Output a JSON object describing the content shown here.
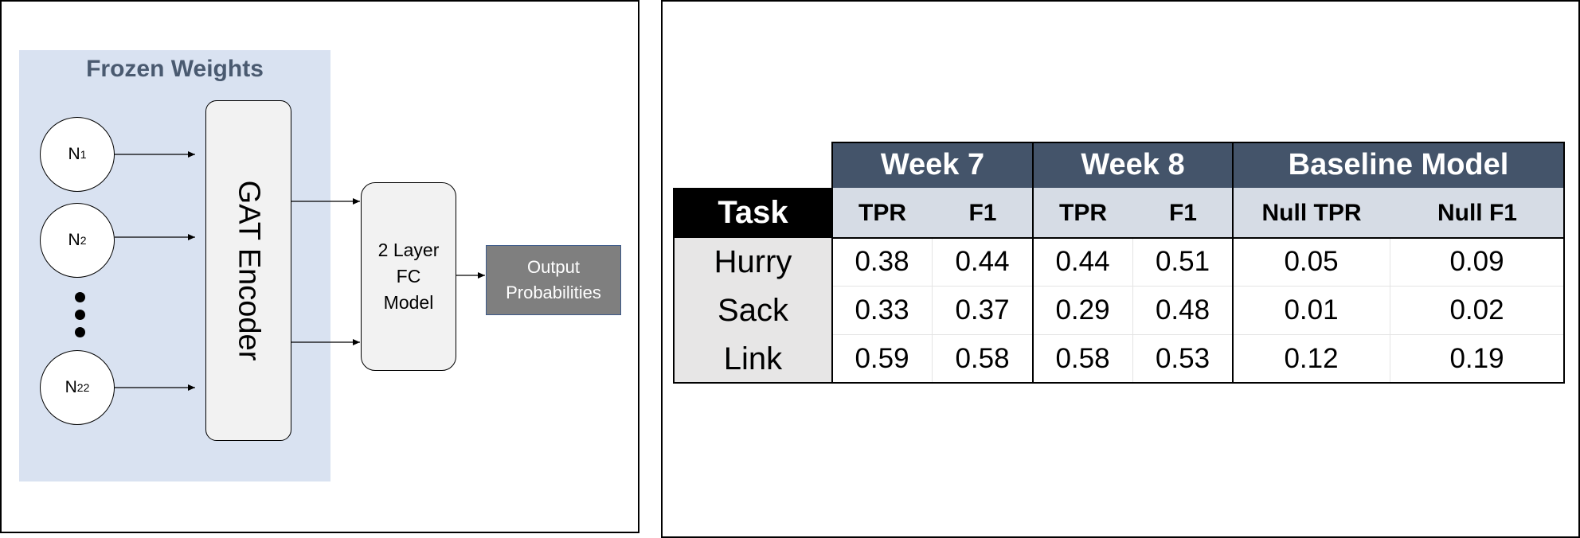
{
  "diagram": {
    "frozen_label": "Frozen Weights",
    "nodes": [
      {
        "base": "N",
        "sub": "1"
      },
      {
        "base": "N",
        "sub": "2"
      },
      {
        "base": "N",
        "sub": "22"
      }
    ],
    "encoder_label": "GAT Encoder",
    "fc_lines": [
      "2 Layer",
      "FC",
      "Model"
    ],
    "output_lines": [
      "Output",
      "Probabilities"
    ]
  },
  "table": {
    "groups": [
      "Week 7",
      "Week 8",
      "Baseline Model"
    ],
    "task_header": "Task",
    "subheaders": [
      "TPR",
      "F1",
      "TPR",
      "F1",
      "Null TPR",
      "Null F1"
    ],
    "rows": [
      {
        "task": "Hurry",
        "values": [
          "0.38",
          "0.44",
          "0.44",
          "0.51",
          "0.05",
          "0.09"
        ]
      },
      {
        "task": "Sack",
        "values": [
          "0.33",
          "0.37",
          "0.29",
          "0.48",
          "0.01",
          "0.02"
        ]
      },
      {
        "task": "Link",
        "values": [
          "0.59",
          "0.58",
          "0.58",
          "0.53",
          "0.12",
          "0.19"
        ]
      }
    ]
  }
}
